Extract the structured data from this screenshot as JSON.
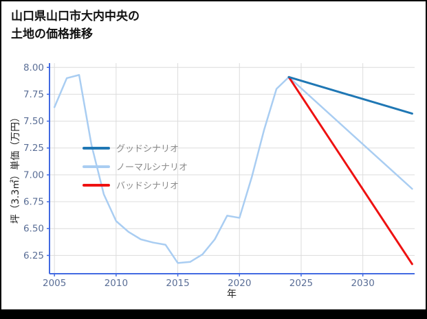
{
  "title": {
    "line1": "山口県山口市大内中央の",
    "line2": "土地の価格推移"
  },
  "chart_data": {
    "type": "line",
    "title": "山口県山口市大内中央の土地の価格推移",
    "xlabel": "年",
    "ylabel": "坪（3.3㎡）単価（万円）",
    "xlim": [
      2004.6,
      2034.2
    ],
    "ylim": [
      6.08,
      8.04
    ],
    "x_ticks": [
      2005,
      2010,
      2015,
      2020,
      2025,
      2030
    ],
    "y_ticks": [
      6.25,
      6.5,
      6.75,
      7.0,
      7.25,
      7.5,
      7.75,
      8.0
    ],
    "grid": true,
    "colors": {
      "axis": "#4169e1",
      "tick_label": "#5a6e96",
      "grid": "#dcdcdc",
      "good": "#1f77b4",
      "normal": "#a9cdf2",
      "bad": "#ee1111"
    },
    "series": [
      {
        "name": "ノーマルシナリオ",
        "color": "#a9cdf2",
        "width": 2.5,
        "x": [
          2005,
          2006,
          2007,
          2008,
          2009,
          2010,
          2011,
          2012,
          2013,
          2014,
          2015,
          2016,
          2017,
          2018,
          2019,
          2020,
          2021,
          2022,
          2023,
          2024,
          2034
        ],
        "y": [
          7.63,
          7.9,
          7.93,
          7.28,
          6.82,
          6.57,
          6.47,
          6.4,
          6.37,
          6.35,
          6.18,
          6.19,
          6.26,
          6.4,
          6.62,
          6.6,
          6.98,
          7.42,
          7.8,
          7.91,
          6.87
        ]
      },
      {
        "name": "バッドシナリオ",
        "color": "#ee1111",
        "width": 3,
        "x": [
          2024,
          2034
        ],
        "y": [
          7.91,
          6.17
        ]
      },
      {
        "name": "グッドシナリオ",
        "color": "#1f77b4",
        "width": 3,
        "x": [
          2024,
          2034
        ],
        "y": [
          7.91,
          7.57
        ]
      }
    ],
    "legend": {
      "position": "left-center-inside",
      "entries": [
        {
          "label": "グッドシナリオ",
          "color": "#1f77b4"
        },
        {
          "label": "ノーマルシナリオ",
          "color": "#a9cdf2"
        },
        {
          "label": "バッドシナリオ",
          "color": "#ee1111"
        }
      ]
    }
  }
}
